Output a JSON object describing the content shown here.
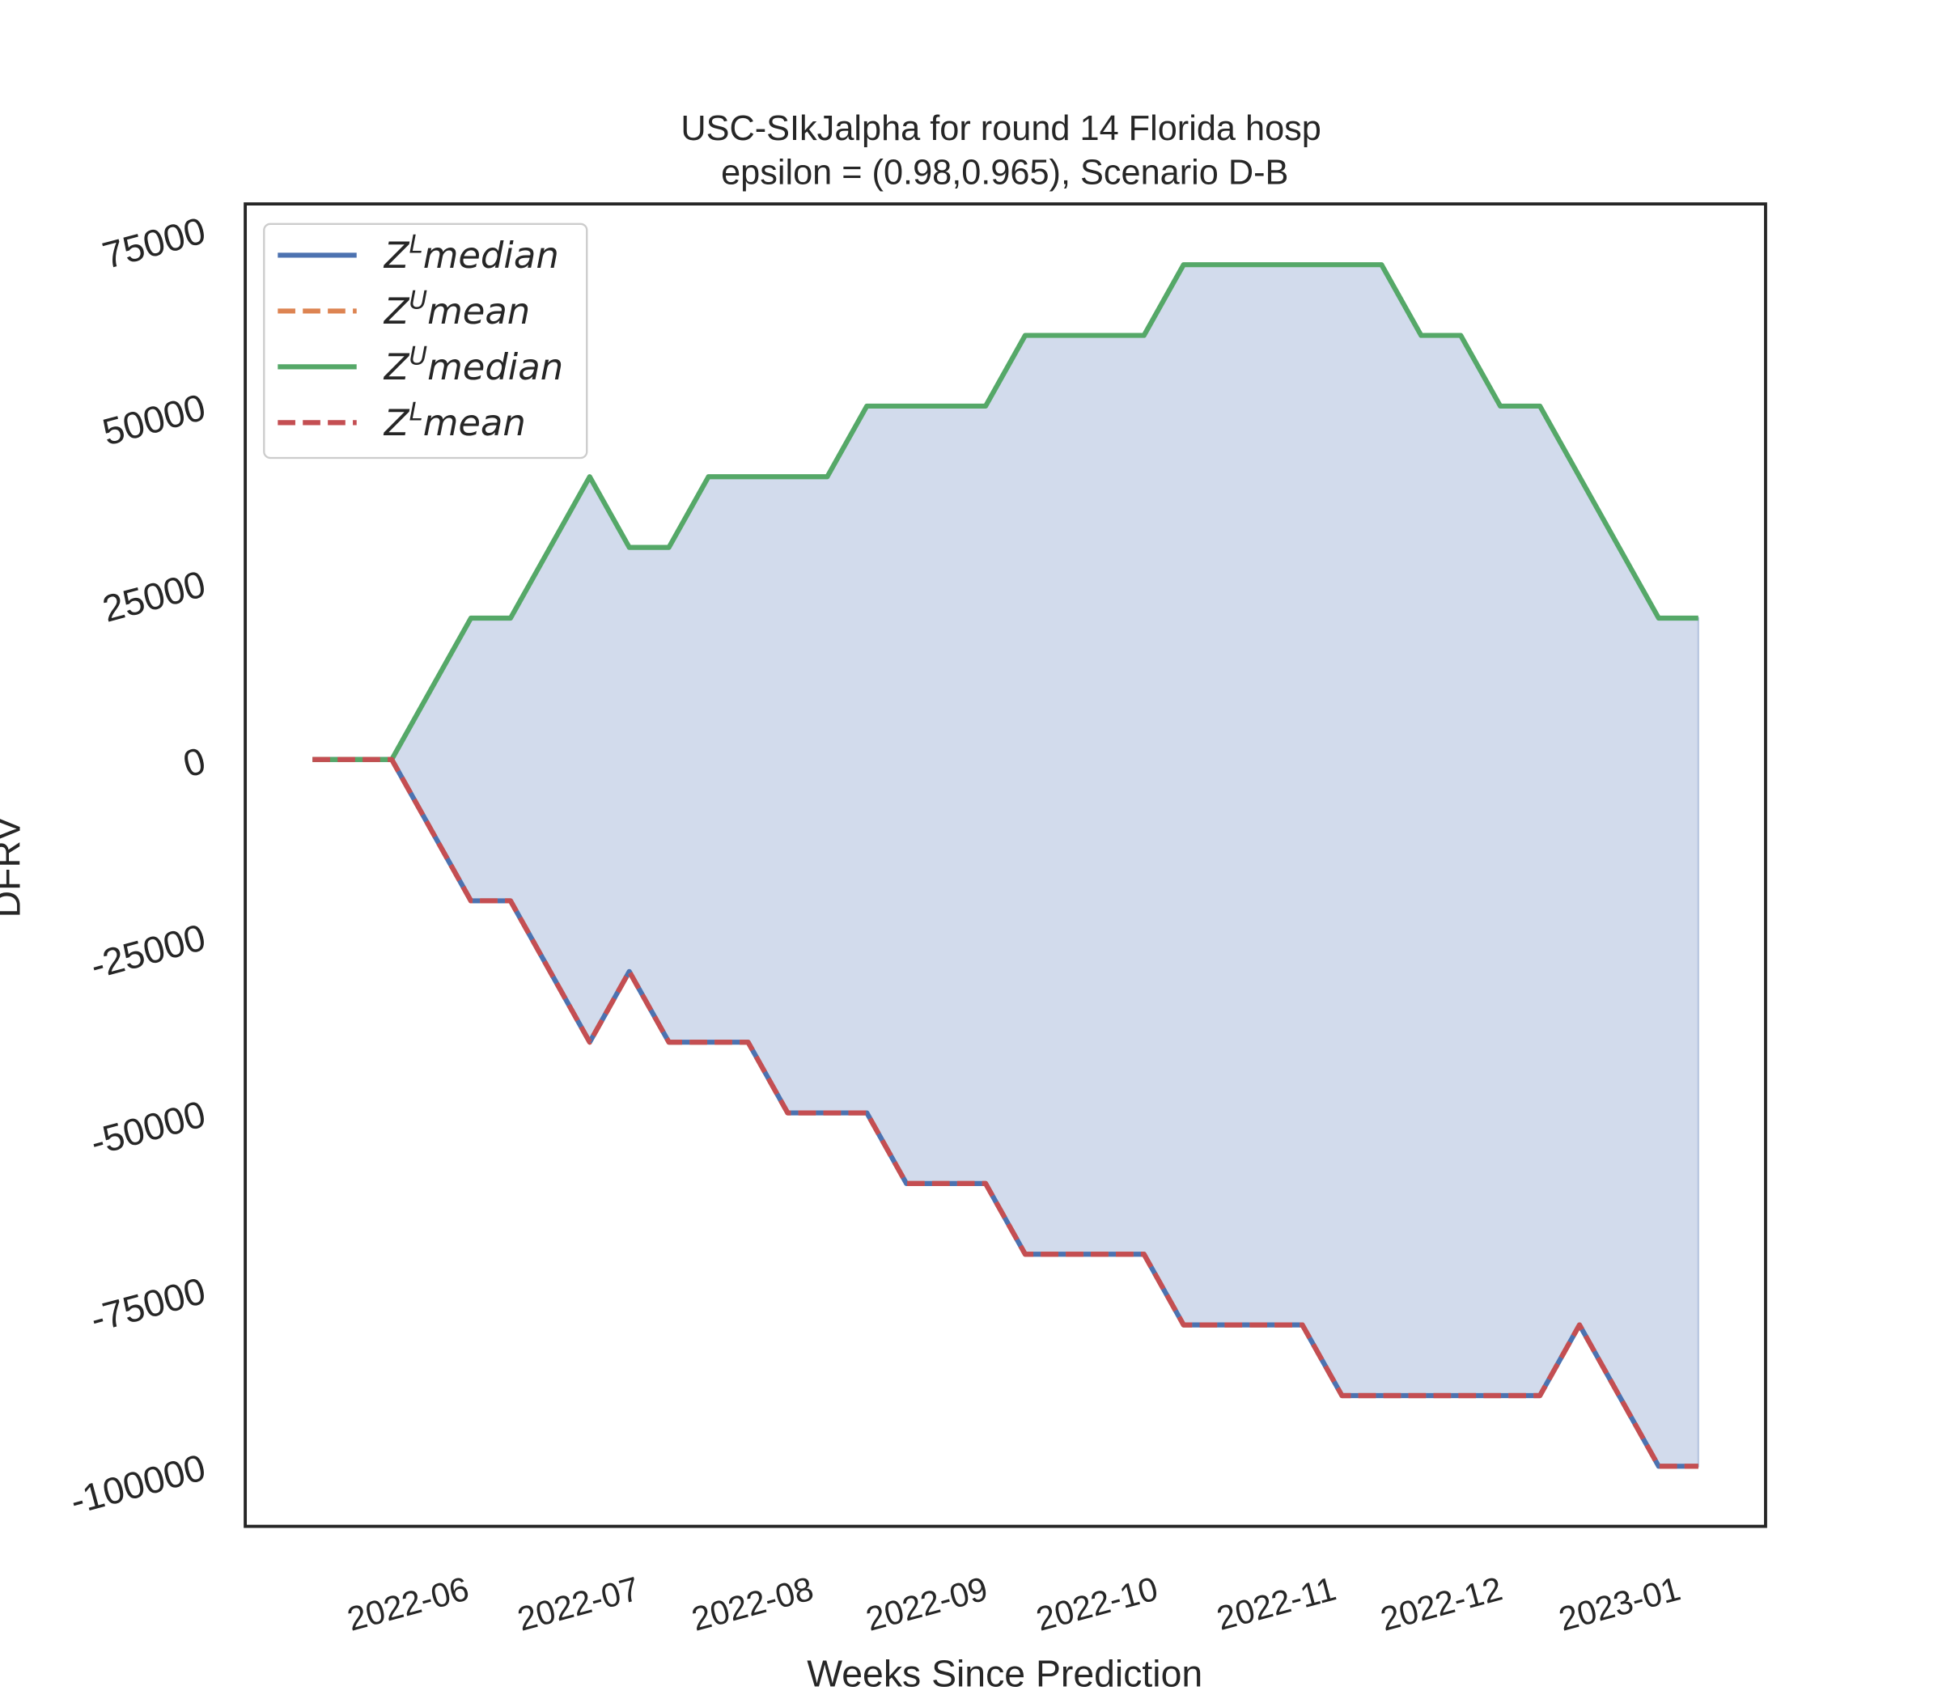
{
  "chart_data": {
    "type": "line",
    "title": [
      "USC-SIkJalpha for round 14 Florida  hosp",
      "epsilon = (0.98,0.965), Scenario D-B"
    ],
    "xlabel": "Weeks Since Prediction",
    "ylabel": "DFRV",
    "x": [
      0,
      1,
      2,
      3,
      4,
      5,
      6,
      7,
      8,
      9,
      10,
      11,
      12,
      13,
      14,
      15,
      16,
      17,
      18,
      19,
      20,
      21,
      22,
      23,
      24,
      25,
      26,
      27,
      28,
      29,
      30,
      31,
      32,
      33,
      34,
      35
    ],
    "xlim": [
      -1.7,
      36.7
    ],
    "xticks": [
      {
        "value": 4,
        "label": "2022-06"
      },
      {
        "value": 8.3,
        "label": "2022-07"
      },
      {
        "value": 12.7,
        "label": "2022-08"
      },
      {
        "value": 17.1,
        "label": "2022-09"
      },
      {
        "value": 21.4,
        "label": "2022-10"
      },
      {
        "value": 25.9,
        "label": "2022-11"
      },
      {
        "value": 30.1,
        "label": "2022-12"
      },
      {
        "value": 34.6,
        "label": "2023-01"
      }
    ],
    "ylim": [
      -108500,
      78600
    ],
    "yticks": [
      -100000,
      -75000,
      -50000,
      -25000,
      0,
      25000,
      50000,
      75000
    ],
    "grid": false,
    "legend": "upper left",
    "fill_between": {
      "upper": 2,
      "lower": 0,
      "color": "#d2dbec"
    },
    "series": [
      {
        "name": "Z^Lmedian",
        "color": "#4c72b0",
        "dash": false,
        "values": [
          0,
          0,
          0,
          -10000,
          -20000,
          -20000,
          -30000,
          -40000,
          -30000,
          -40000,
          -40000,
          -40000,
          -50000,
          -50000,
          -50000,
          -60000,
          -60000,
          -60000,
          -70000,
          -70000,
          -70000,
          -70000,
          -80000,
          -80000,
          -80000,
          -80000,
          -90000,
          -90000,
          -90000,
          -90000,
          -90000,
          -90000,
          -80000,
          -90000,
          -100000,
          -100000
        ]
      },
      {
        "name": "Z^Umean",
        "color": "#dd8452",
        "dash": true,
        "values": [
          0,
          0,
          0,
          -10000,
          -20000,
          -20000,
          -30000,
          -40000,
          -30000,
          -40000,
          -40000,
          -40000,
          -50000,
          -50000,
          -50000,
          -60000,
          -60000,
          -60000,
          -70000,
          -70000,
          -70000,
          -70000,
          -80000,
          -80000,
          -80000,
          -80000,
          -90000,
          -90000,
          -90000,
          -90000,
          -90000,
          -90000,
          -80000,
          -90000,
          -100000,
          -100000
        ]
      },
      {
        "name": "Z^Umedian",
        "color": "#55a868",
        "dash": false,
        "values": [
          0,
          0,
          0,
          10000,
          20000,
          20000,
          30000,
          40000,
          30000,
          30000,
          40000,
          40000,
          40000,
          40000,
          50000,
          50000,
          50000,
          50000,
          60000,
          60000,
          60000,
          60000,
          70000,
          70000,
          70000,
          70000,
          70000,
          70000,
          60000,
          60000,
          50000,
          50000,
          40000,
          30000,
          20000,
          20000
        ]
      },
      {
        "name": "Z^Lmean",
        "color": "#c44e52",
        "dash": true,
        "values": [
          0,
          0,
          0,
          -10000,
          -20000,
          -20000,
          -30000,
          -40000,
          -30000,
          -40000,
          -40000,
          -40000,
          -50000,
          -50000,
          -50000,
          -60000,
          -60000,
          -60000,
          -70000,
          -70000,
          -70000,
          -70000,
          -80000,
          -80000,
          -80000,
          -80000,
          -90000,
          -90000,
          -90000,
          -90000,
          -90000,
          -90000,
          -80000,
          -90000,
          -100000,
          -100000
        ]
      }
    ]
  }
}
